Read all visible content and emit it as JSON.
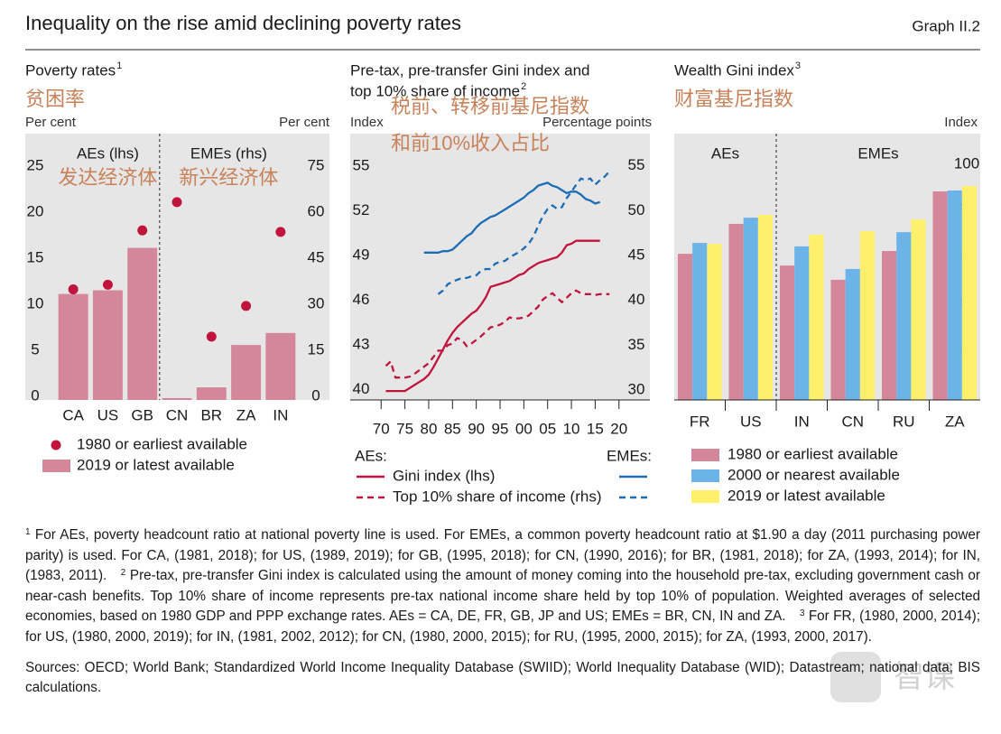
{
  "header": {
    "title": "Inequality on the rise amid declining poverty rates",
    "graph_label": "Graph II.2"
  },
  "chart_data": [
    {
      "type": "bar",
      "title": "Poverty rates",
      "title_note": "1",
      "annotation": "贫困率",
      "ylabel": "Per cent",
      "y2label": "Per cent",
      "ylim": [
        0,
        28.9
      ],
      "yticks": [
        0,
        5,
        10,
        15,
        20,
        25
      ],
      "y2lim": [
        0,
        86.7
      ],
      "y2ticks": [
        0,
        15,
        30,
        45,
        60,
        75
      ],
      "groups": [
        {
          "label": "AEs (lhs)",
          "annotation": "发达经济体",
          "axis": "y",
          "categories": [
            "CA",
            "US",
            "GB"
          ]
        },
        {
          "label": "EMEs (rhs)",
          "annotation": "新兴经济体",
          "axis": "y2",
          "categories": [
            "CN",
            "BR",
            "ZA",
            "IN"
          ]
        }
      ],
      "series": [
        {
          "name": "1980 or earliest available",
          "marker": "dot",
          "color": "#c0143c",
          "values": [
            12.0,
            12.5,
            18.4,
            64.4,
            20.6,
            30.6,
            54.7
          ]
        },
        {
          "name": "2019 or latest available",
          "marker": "bar",
          "color": "#d4879b",
          "values": [
            11.5,
            11.9,
            16.5,
            0.6,
            4.1,
            17.9,
            21.8
          ]
        }
      ]
    },
    {
      "type": "line",
      "title_lines": [
        "Pre-tax, pre-transfer Gini index and",
        "top 10% share of income"
      ],
      "title_note": "2",
      "annotations": [
        "税前、转移前基尼指数",
        "和前10%收入占比"
      ],
      "ylabel": "Index",
      "y2label": "Percentage points",
      "xlim": [
        1963.5,
        2026.5
      ],
      "xticks": [
        {
          "value": 1970,
          "label": "70"
        },
        {
          "value": 1975,
          "label": "75"
        },
        {
          "value": 1980,
          "label": "80"
        },
        {
          "value": 1985,
          "label": "85"
        },
        {
          "value": 1990,
          "label": "90"
        },
        {
          "value": 1995,
          "label": "95"
        },
        {
          "value": 2000,
          "label": "00"
        },
        {
          "value": 2005,
          "label": "05"
        },
        {
          "value": 2010,
          "label": "10"
        },
        {
          "value": 2015,
          "label": "15"
        },
        {
          "value": 2020,
          "label": "20"
        }
      ],
      "ylim": [
        39.3,
        57.2
      ],
      "yticks": [
        40,
        43,
        46,
        49,
        52,
        55
      ],
      "y2lim": [
        28.9,
        58.6
      ],
      "y2ticks": [
        30,
        35,
        40,
        45,
        50,
        55
      ],
      "x": [
        1970,
        1971,
        1972,
        1973,
        1974,
        1975,
        1976,
        1977,
        1978,
        1979,
        1980,
        1981,
        1982,
        1983,
        1984,
        1985,
        1986,
        1987,
        1988,
        1989,
        1990,
        1991,
        1992,
        1993,
        1994,
        1995,
        1996,
        1997,
        1998,
        1999,
        2000,
        2001,
        2002,
        2003,
        2004,
        2005,
        2006,
        2007,
        2008,
        2009,
        2010,
        2011,
        2012,
        2013,
        2014,
        2015,
        2016,
        2017,
        2018
      ],
      "measures": [
        {
          "name": "Gini index (lhs)",
          "style": "solid",
          "axis": "y"
        },
        {
          "name": "Top 10% share of income (rhs)",
          "style": "dashed",
          "axis": "y2"
        }
      ],
      "groups": [
        {
          "label": "AEs:",
          "color": "#c0143c",
          "series": [
            {
              "values": [
                null,
                39.9,
                39.9,
                39.9,
                39.9,
                39.9,
                40.1,
                40.3,
                40.5,
                40.7,
                41.0,
                41.5,
                42.1,
                42.7,
                43.3,
                43.8,
                44.2,
                44.5,
                44.8,
                45.1,
                45.3,
                45.7,
                46.2,
                46.9,
                47.0,
                47.1,
                47.2,
                47.3,
                47.5,
                47.7,
                47.8,
                48.1,
                48.3,
                48.5,
                48.6,
                48.7,
                48.8,
                48.9,
                49.2,
                49.7,
                49.8,
                50.0,
                50.0,
                50.0,
                50.0,
                50.0,
                50.0,
                null,
                null
              ]
            },
            {
              "values": [
                null,
                32.7,
                33.2,
                31.4,
                31.4,
                31.4,
                31.5,
                31.8,
                32.2,
                32.6,
                33.0,
                33.7,
                34.4,
                34.4,
                35.0,
                35.2,
                35.8,
                35.6,
                34.9,
                35.2,
                35.6,
                36.0,
                36.5,
                37.0,
                37.1,
                37.3,
                37.6,
                38.1,
                38.0,
                38.0,
                38.1,
                38.3,
                38.8,
                39.3,
                40.1,
                40.5,
                40.8,
                40.3,
                39.8,
                40.3,
                40.8,
                41.1,
                40.8,
                40.7,
                40.7,
                40.6,
                40.7,
                40.7,
                40.7
              ]
            }
          ]
        },
        {
          "label": "EMEs:",
          "color": "#1a6db5",
          "series": [
            {
              "values": [
                null,
                null,
                null,
                null,
                null,
                null,
                null,
                null,
                null,
                49.2,
                49.2,
                49.2,
                49.2,
                49.3,
                49.3,
                49.4,
                49.7,
                50.0,
                50.3,
                50.5,
                50.9,
                51.2,
                51.4,
                51.6,
                51.7,
                51.9,
                52.1,
                52.3,
                52.5,
                52.7,
                52.9,
                53.2,
                53.4,
                53.7,
                53.8,
                53.9,
                53.7,
                53.6,
                53.4,
                53.2,
                53.3,
                53.3,
                53.1,
                52.8,
                52.7,
                52.5,
                52.6,
                null,
                null
              ]
            },
            {
              "values": [
                null,
                null,
                null,
                null,
                null,
                null,
                null,
                null,
                null,
                null,
                null,
                null,
                40.7,
                41.1,
                41.8,
                42.1,
                42.3,
                42.5,
                42.5,
                42.7,
                42.8,
                43.3,
                43.5,
                43.5,
                44.1,
                44.3,
                44.4,
                44.8,
                45.1,
                45.4,
                45.8,
                46.3,
                47.1,
                48.3,
                49.4,
                50.2,
                50.6,
                50.2,
                50.4,
                51.4,
                52.1,
                52.9,
                53.6,
                53.4,
                53.6,
                52.9,
                53.4,
                53.8,
                54.4
              ]
            }
          ]
        }
      ]
    },
    {
      "type": "bar",
      "title": "Wealth Gini index",
      "title_note": "3",
      "annotation": "财富基尼指数",
      "ylabel": "Index",
      "yaxis_side": "right",
      "ylim": [
        0,
        115.7
      ],
      "yticks": [
        0,
        20,
        40,
        60,
        80,
        100
      ],
      "groups": [
        {
          "label": "AEs",
          "axis": "y",
          "categories": [
            "FR",
            "US"
          ]
        },
        {
          "label": "EMEs",
          "axis": "y",
          "categories": [
            "IN",
            "CN",
            "RU",
            "ZA"
          ]
        }
      ],
      "series": [
        {
          "name": "1980 or earliest available",
          "marker": "bar",
          "color": "#d4879b",
          "values": [
            63.5,
            76.5,
            58.4,
            52.2,
            64.7,
            90.6
          ]
        },
        {
          "name": "2000 or nearest available",
          "marker": "bar",
          "color": "#6cb4e8",
          "values": [
            68.2,
            79.2,
            66.7,
            56.9,
            72.9,
            91.0
          ]
        },
        {
          "name": "2019 or latest available",
          "marker": "bar",
          "color": "#fef06a",
          "values": [
            67.8,
            80.4,
            71.8,
            73.3,
            78.4,
            92.9
          ]
        }
      ]
    }
  ],
  "notes": [
    {
      "mark": "1",
      "text": "For AEs, poverty headcount ratio at national poverty line is used. For EMEs, a common poverty headcount ratio at $1.90 a day (2011 purchasing power parity) is used. For CA, (1981, 2018); for US, (1989, 2019); for GB, (1995, 2018); for CN, (1990, 2016); for BR, (1981, 2018); for ZA, (1993, 2014); for IN, (1983, 2011)."
    },
    {
      "mark": "2",
      "text": "Pre-tax, pre-transfer Gini index is calculated using the amount of money coming into the household pre-tax, excluding government cash or near-cash benefits. Top 10% share of income represents pre-tax national income share held by top 10% of population. Weighted averages of selected economies, based on 1980 GDP and PPP exchange rates. AEs = CA, DE, FR, GB, JP and US; EMEs = BR, CN, IN and ZA."
    },
    {
      "mark": "3",
      "text": "For FR, (1980, 2000, 2014); for US, (1980, 2000, 2019); for IN, (1981, 2002, 2012); for CN, (1980, 2000, 2015); for RU, (1995, 2000, 2015); for ZA, (1993, 2000, 2017)."
    }
  ],
  "sources": "Sources: OECD; World Bank; Standardized World Income Inequality Database (SWIID); World Inequality Database (WID); Datastream; national data; BIS calculations.",
  "watermark": "智课"
}
